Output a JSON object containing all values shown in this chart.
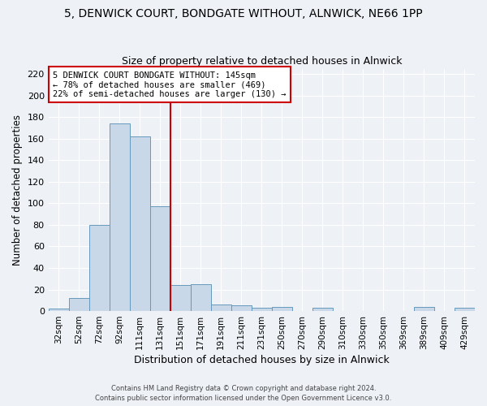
{
  "title": "5, DENWICK COURT, BONDGATE WITHOUT, ALNWICK, NE66 1PP",
  "subtitle": "Size of property relative to detached houses in Alnwick",
  "xlabel": "Distribution of detached houses by size in Alnwick",
  "ylabel": "Number of detached properties",
  "bar_labels": [
    "32sqm",
    "52sqm",
    "72sqm",
    "92sqm",
    "111sqm",
    "131sqm",
    "151sqm",
    "171sqm",
    "191sqm",
    "211sqm",
    "231sqm",
    "250sqm",
    "270sqm",
    "290sqm",
    "310sqm",
    "330sqm",
    "350sqm",
    "369sqm",
    "389sqm",
    "409sqm",
    "429sqm"
  ],
  "bar_values": [
    2,
    12,
    80,
    174,
    162,
    97,
    24,
    25,
    6,
    5,
    3,
    4,
    0,
    3,
    0,
    0,
    0,
    0,
    4,
    0,
    3
  ],
  "bar_color": "#c8d8e8",
  "bar_edge_color": "#6699bb",
  "ylim": [
    0,
    225
  ],
  "yticks": [
    0,
    20,
    40,
    60,
    80,
    100,
    120,
    140,
    160,
    180,
    200,
    220
  ],
  "vline_bar_index": 6,
  "vline_color": "#cc0000",
  "annotation_title": "5 DENWICK COURT BONDGATE WITHOUT: 145sqm",
  "annotation_line1": "← 78% of detached houses are smaller (469)",
  "annotation_line2": "22% of semi-detached houses are larger (130) →",
  "annotation_box_color": "#ffffff",
  "annotation_border_color": "#cc0000",
  "footer1": "Contains HM Land Registry data © Crown copyright and database right 2024.",
  "footer2": "Contains public sector information licensed under the Open Government Licence v3.0.",
  "bg_color": "#eef2f7",
  "grid_color": "#ffffff",
  "title_fontsize": 10,
  "subtitle_fontsize": 9
}
